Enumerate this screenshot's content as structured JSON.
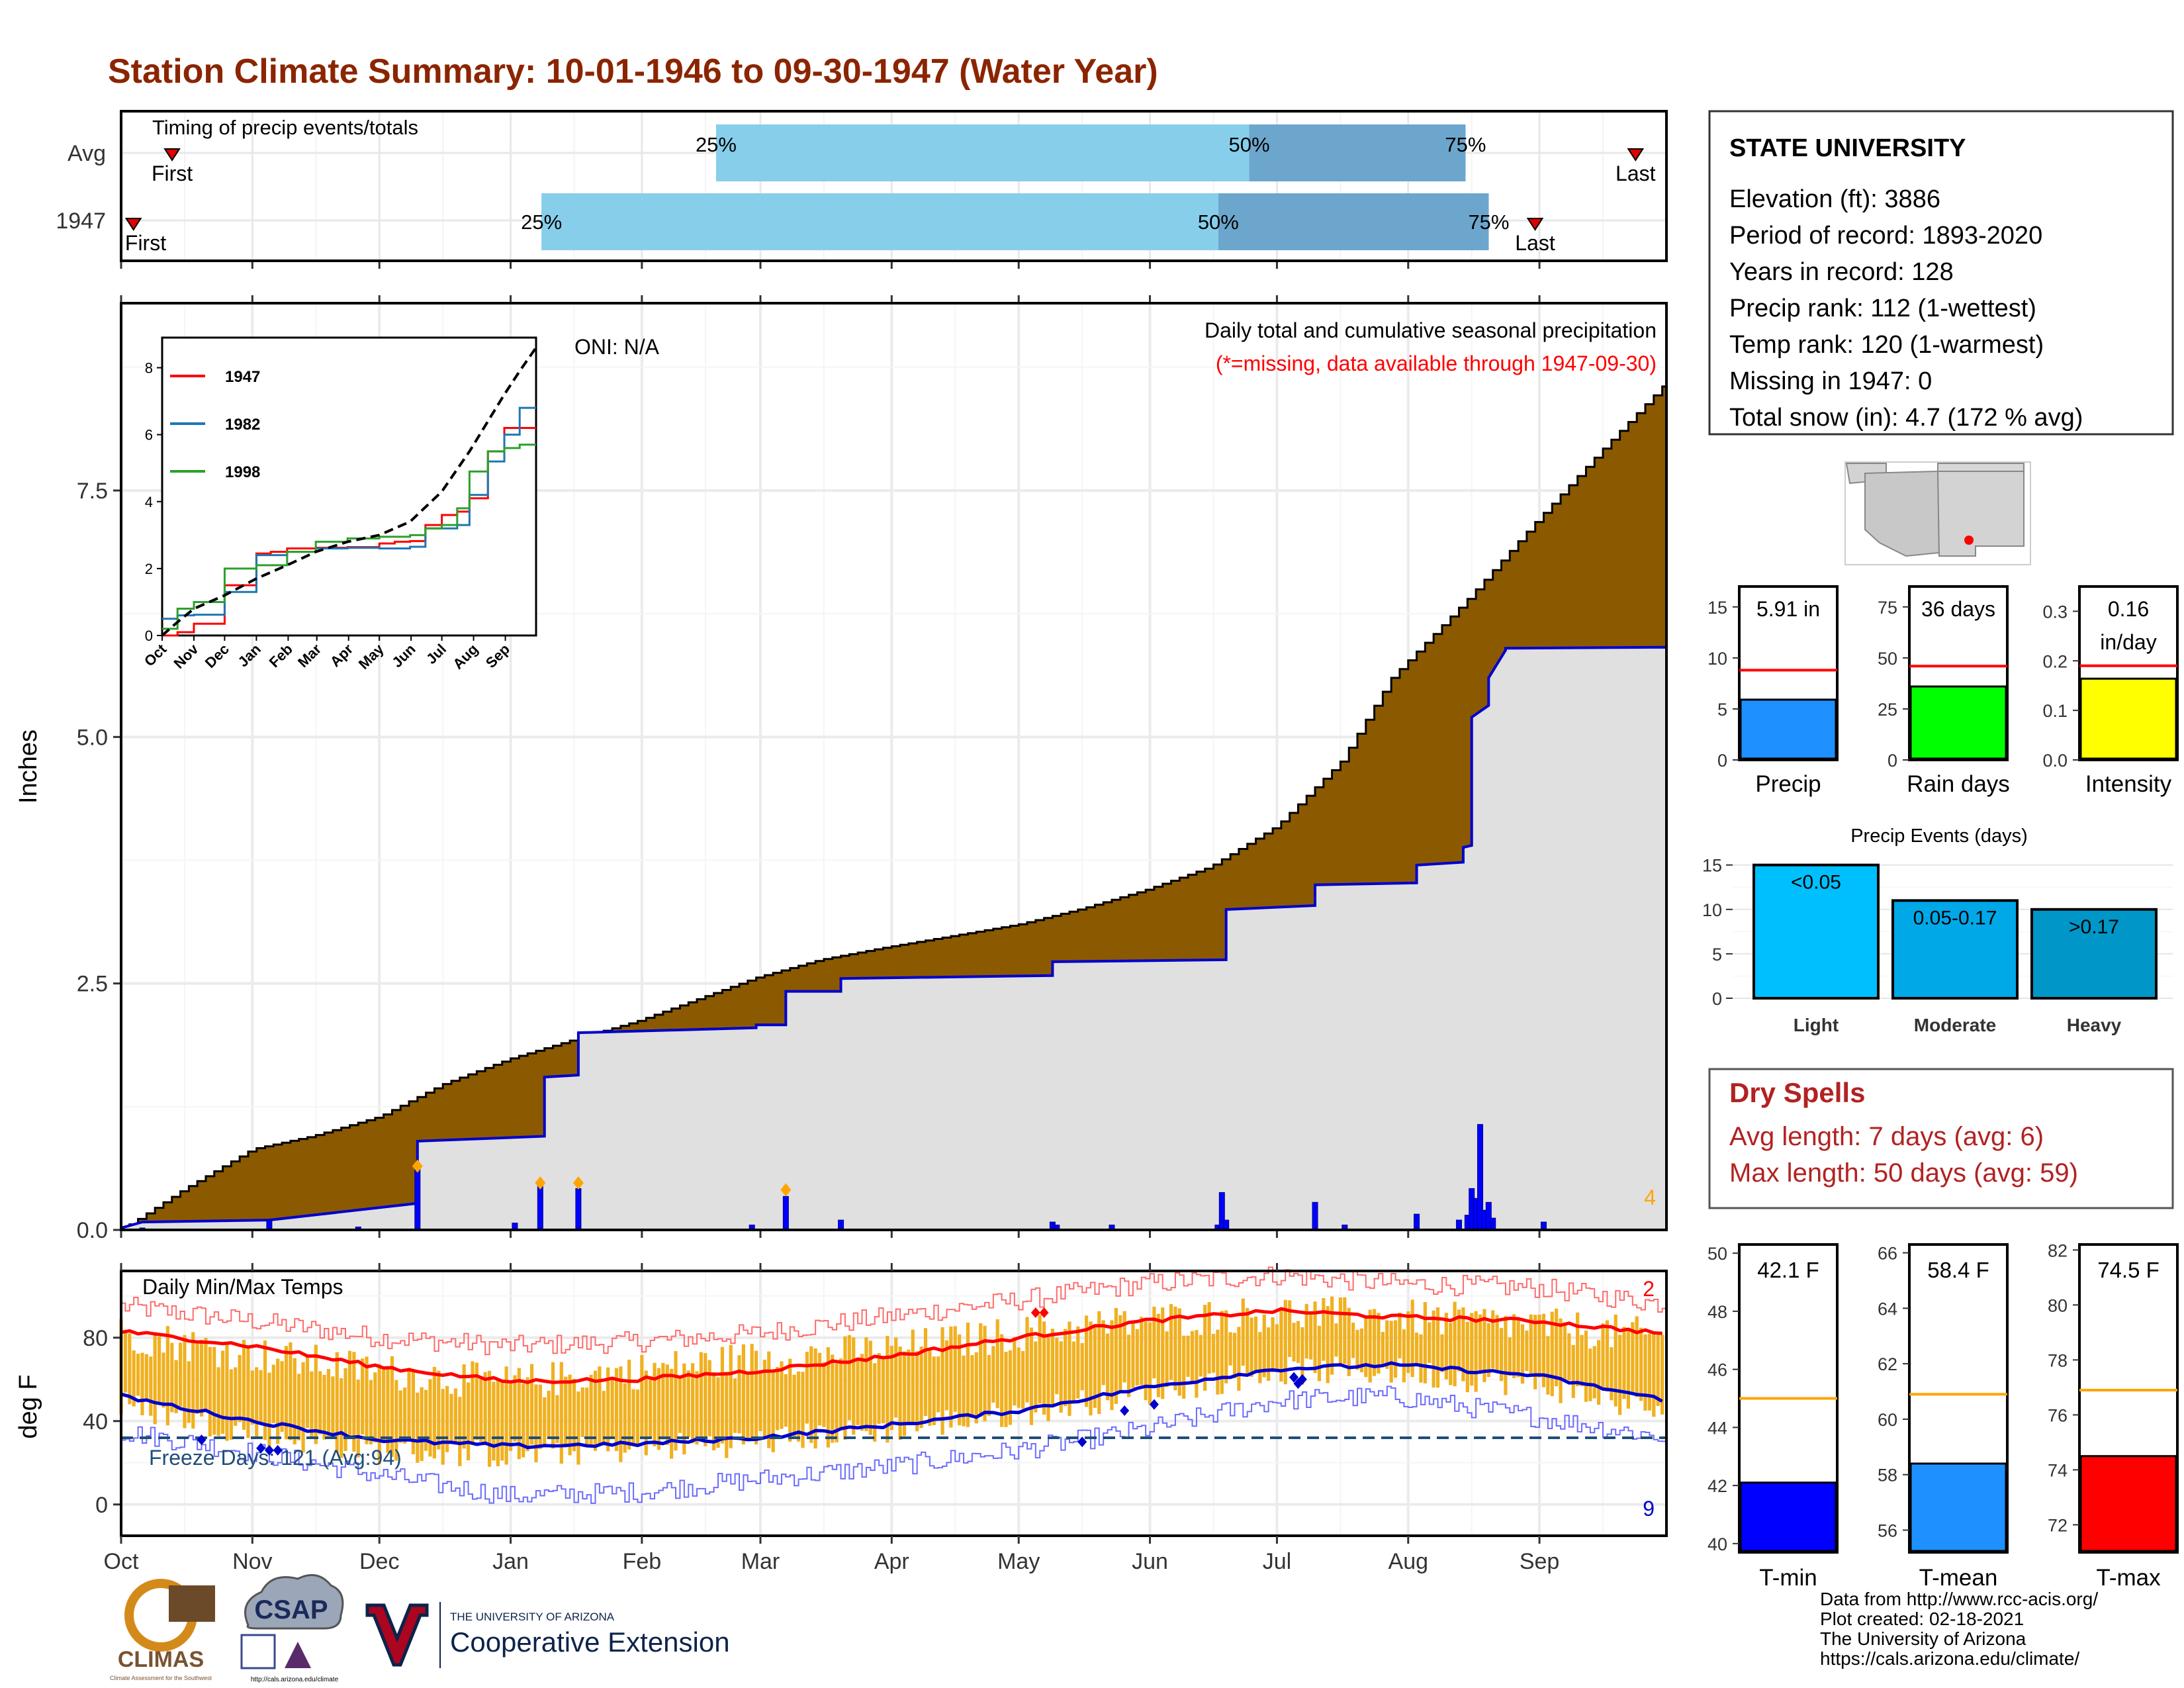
{
  "title": "Station Climate Summary: 10-01-1946 to 09-30-1947 (Water Year)",
  "colors": {
    "title": "#8B2500",
    "light_blue": "#87CEEB",
    "mid_blue": "#6CA6CD",
    "cumulative_fill": "#8B5A00",
    "normal_fill": "#E0E0E0",
    "precip_bar": "#0000FF",
    "temp_bar": "#F0B020",
    "tmax_line": "#FF0000",
    "tmin_line": "#0000CD",
    "freeze_line": "#1F4E79"
  },
  "timing": {
    "label": "Timing of precip events/totals",
    "rows": [
      {
        "name": "Avg",
        "first": 0.033,
        "last": 0.98,
        "q25": 0.385,
        "q50": 0.73,
        "q75": 0.87,
        "labels": {
          "first": "First",
          "last": "Last",
          "q25": "25%",
          "q50": "50%",
          "q75": "75%"
        }
      },
      {
        "name": "1947",
        "first": 0.008,
        "last": 0.915,
        "q25": 0.272,
        "q50": 0.71,
        "q75": 0.885,
        "labels": {
          "first": "First",
          "last": "Last",
          "q25": "25%",
          "q50": "50%",
          "q75": "75%"
        }
      }
    ]
  },
  "main_panel": {
    "title": "Daily total and cumulative seasonal precipitation",
    "subtitle": "(*=missing, data available through 1947-09-30)",
    "oni": "ONI: N/A",
    "corner_count": "4",
    "ylabel": "Inches",
    "yticks": [
      "0.0",
      "2.5",
      "5.0",
      "7.5"
    ]
  },
  "months": [
    "Oct",
    "Nov",
    "Dec",
    "Jan",
    "Feb",
    "Mar",
    "Apr",
    "May",
    "Jun",
    "Jul",
    "Aug",
    "Sep"
  ],
  "inset": {
    "yticks": [
      "0",
      "2",
      "4",
      "6",
      "8"
    ],
    "legend": [
      {
        "name": "1947",
        "color": "#FF0000"
      },
      {
        "name": "1982",
        "color": "#1F77B4"
      },
      {
        "name": "1998",
        "color": "#2CA02C"
      }
    ]
  },
  "temp_panel": {
    "title": "Daily Min/Max Temps",
    "ylabel": "deg F",
    "yticks": [
      "0",
      "40",
      "80"
    ],
    "freeze_label": "Freeze Days: 121 (Avg:94)",
    "max_count": "2",
    "min_count": "9"
  },
  "station": {
    "name": "STATE UNIVERSITY",
    "lines": [
      "Elevation (ft): 3886",
      "Period of record: 1893-2020",
      "Years in record: 128",
      "Precip rank: 112 (1-wettest)",
      "Temp rank: 120 (1-warmest)",
      "Missing in 1947: 0",
      "Total snow (in): 4.7 (172 % avg)"
    ]
  },
  "mini_bars": [
    {
      "label": "Precip",
      "value_text": "5.91 in",
      "value": 5.91,
      "avg": 8.8,
      "max": 17,
      "ticks": [
        "0",
        "5",
        "10",
        "15"
      ],
      "tick_vals": [
        0,
        5,
        10,
        15
      ],
      "color": "#1E90FF"
    },
    {
      "label": "Rain days",
      "value_text": "36 days",
      "value": 36,
      "avg": 46,
      "max": 85,
      "ticks": [
        "0",
        "25",
        "50",
        "75"
      ],
      "tick_vals": [
        0,
        25,
        50,
        75
      ],
      "color": "#00FF00"
    },
    {
      "label": "Intensity",
      "value_text": "0.16 in/day",
      "value_line1": "0.16",
      "value_line2": "in/day",
      "value": 0.164,
      "avg": 0.19,
      "max": 0.35,
      "ticks": [
        "0.0",
        "0.1",
        "0.2",
        "0.3"
      ],
      "tick_vals": [
        0.0,
        0.1,
        0.2,
        0.3
      ],
      "color": "#FFFF00"
    }
  ],
  "precip_events": {
    "title": "Precip Events (days)",
    "yticks": [
      "0",
      "5",
      "10",
      "15"
    ],
    "bars": [
      {
        "category": "Light",
        "label": "<0.05",
        "value": 15,
        "color": "#00BFFF"
      },
      {
        "category": "Moderate",
        "label": "0.05-0.17",
        "value": 11,
        "color": "#00A8E8"
      },
      {
        "category": "Heavy",
        "label": ">0.17",
        "value": 10,
        "color": "#0096C8"
      }
    ]
  },
  "dry_spells": {
    "title": "Dry Spells",
    "lines": [
      "Avg length: 7 days (avg: 6)",
      "Max length: 50 days (avg: 59)"
    ],
    "color": "#B22222"
  },
  "temp_bars": [
    {
      "label": "T-min",
      "value_text": "42.1 F",
      "value": 42.1,
      "avg": 45.0,
      "min": 39.7,
      "max": 50.3,
      "ticks": [
        "40",
        "42",
        "44",
        "46",
        "48",
        "50"
      ],
      "tick_vals": [
        40,
        42,
        44,
        46,
        48,
        50
      ],
      "color": "#0000FF"
    },
    {
      "label": "T-mean",
      "value_text": "58.4 F",
      "value": 58.4,
      "avg": 60.9,
      "min": 55.2,
      "max": 66.3,
      "ticks": [
        "56",
        "58",
        "60",
        "62",
        "64",
        "66"
      ],
      "tick_vals": [
        56,
        58,
        60,
        62,
        64,
        66
      ],
      "color": "#1E90FF"
    },
    {
      "label": "T-max",
      "value_text": "74.5 F",
      "value": 74.5,
      "avg": 76.9,
      "min": 71.0,
      "max": 82.2,
      "ticks": [
        "72",
        "74",
        "76",
        "78",
        "80",
        "82"
      ],
      "tick_vals": [
        72,
        74,
        76,
        78,
        80,
        82
      ],
      "color": "#FF0000"
    }
  ],
  "footer": {
    "lines": [
      "Data from http://www.rcc-acis.org/",
      "Plot created: 02-18-2021",
      "The University of Arizona",
      "https://cals.arizona.edu/climate/"
    ],
    "climas": "CLIMAS",
    "climas_sub": "Climate Assessment for the Southwest",
    "csap": "CSAP",
    "csap_url": "http://cals.arizona.edu/climate",
    "ua_small": "THE UNIVERSITY OF ARIZONA",
    "ua_big": "Cooperative Extension"
  },
  "chart_data": [
    {
      "type": "area",
      "title": "Daily total and cumulative seasonal precipitation",
      "ylabel": "Inches",
      "ylim": [
        0,
        9.4
      ],
      "grid": true,
      "x_unit": "day of water year",
      "series": [
        {
          "name": "cumulative average",
          "x": [
            0,
            15,
            31,
            45,
            61,
            76,
            92,
            106,
            122,
            136,
            150,
            165,
            181,
            196,
            212,
            227,
            242,
            257,
            273,
            288,
            300,
            318,
            334,
            349,
            365
          ],
          "values": [
            0,
            0.42,
            0.82,
            0.95,
            1.15,
            1.48,
            1.74,
            1.92,
            2.12,
            2.34,
            2.56,
            2.74,
            2.87,
            2.98,
            3.1,
            3.26,
            3.45,
            3.68,
            4.1,
            4.75,
            5.6,
            6.4,
            7.18,
            7.88,
            8.6
          ]
        },
        {
          "name": "1947 cumulative",
          "x": [
            0,
            5,
            35,
            70,
            70,
            100,
            100,
            108,
            108,
            150,
            150,
            157,
            157,
            170,
            170,
            220,
            220,
            261,
            261,
            282,
            282,
            306,
            306,
            317,
            317,
            319,
            319,
            323,
            323,
            327,
            327,
            365
          ],
          "values": [
            0.02,
            0.08,
            0.1,
            0.27,
            0.9,
            0.95,
            1.55,
            1.57,
            2.0,
            2.05,
            2.08,
            2.08,
            2.42,
            2.42,
            2.55,
            2.58,
            2.72,
            2.74,
            3.25,
            3.29,
            3.5,
            3.52,
            3.7,
            3.73,
            3.88,
            3.9,
            5.2,
            5.32,
            5.6,
            5.88,
            5.9,
            5.91
          ]
        },
        {
          "name": "1947 daily",
          "x": [
            5,
            35,
            56,
            70,
            93,
            99,
            108,
            149,
            157,
            170,
            220,
            221,
            234,
            259,
            260,
            261,
            282,
            289,
            306,
            316,
            318,
            319,
            320,
            321,
            322,
            323,
            324,
            336
          ],
          "values": [
            0.02,
            0.1,
            0.03,
            0.62,
            0.07,
            0.45,
            0.42,
            0.05,
            0.34,
            0.1,
            0.08,
            0.05,
            0.05,
            0.05,
            0.38,
            0.1,
            0.28,
            0.05,
            0.16,
            0.1,
            0.15,
            0.42,
            0.32,
            1.07,
            0.2,
            0.28,
            0.12,
            0.08
          ]
        }
      ]
    },
    {
      "type": "line",
      "title": "",
      "ylim": [
        0,
        8.9
      ],
      "categories": [
        "Oct",
        "Nov",
        "Dec",
        "Jan",
        "Feb",
        "Mar",
        "Apr",
        "May",
        "Jun",
        "Jul",
        "Aug",
        "Sep"
      ],
      "series": [
        {
          "name": "1947",
          "x": [
            0,
            15,
            31,
            61,
            92,
            106,
            122,
            150,
            181,
            212,
            227,
            242,
            257,
            273,
            288,
            300,
            318,
            334,
            349,
            365
          ],
          "values": [
            0,
            0.1,
            0.35,
            1.5,
            2.45,
            2.5,
            2.6,
            2.62,
            2.64,
            2.75,
            2.8,
            2.82,
            3.3,
            3.6,
            3.7,
            4.1,
            5.5,
            6.2,
            6.2,
            6.2
          ]
        },
        {
          "name": "1982",
          "x": [
            0,
            15,
            31,
            61,
            92,
            122,
            150,
            181,
            212,
            242,
            257,
            273,
            288,
            300,
            318,
            334,
            349,
            365
          ],
          "values": [
            0.5,
            0.6,
            0.62,
            1.3,
            2.4,
            2.5,
            2.6,
            2.62,
            2.6,
            2.65,
            3.2,
            3.2,
            3.3,
            4.2,
            5.2,
            6.0,
            6.8,
            6.8
          ]
        },
        {
          "name": "1998",
          "x": [
            0,
            15,
            31,
            61,
            92,
            122,
            150,
            181,
            212,
            242,
            257,
            273,
            288,
            300,
            318,
            334,
            349,
            365
          ],
          "values": [
            0.2,
            0.8,
            1.0,
            2.0,
            2.1,
            2.5,
            2.8,
            2.9,
            2.95,
            3.0,
            3.2,
            3.3,
            3.8,
            4.9,
            5.5,
            5.6,
            5.7,
            5.7
          ]
        },
        {
          "name": "average",
          "x": [
            0,
            15,
            31,
            61,
            92,
            122,
            150,
            181,
            212,
            242,
            273,
            300,
            318,
            334,
            349,
            365
          ],
          "values": [
            0,
            0.4,
            0.8,
            1.2,
            1.7,
            2.1,
            2.5,
            2.8,
            3.0,
            3.4,
            4.3,
            5.5,
            6.4,
            7.2,
            7.9,
            8.6
          ]
        }
      ]
    },
    {
      "type": "bar",
      "title": "Daily Min/Max Temps",
      "ylabel": "deg F",
      "ylim": [
        -15,
        112
      ],
      "grid": true,
      "freeze_threshold": 32,
      "series": [
        {
          "name": "tmax normal",
          "x": [
            0,
            31,
            61,
            92,
            122,
            150,
            181,
            212,
            242,
            273,
            300,
            334,
            365
          ],
          "values": [
            83,
            76,
            66,
            59,
            60,
            64,
            71,
            80,
            88,
            93,
            90,
            88,
            82
          ]
        },
        {
          "name": "tmin normal",
          "x": [
            0,
            31,
            61,
            92,
            122,
            150,
            181,
            212,
            242,
            273,
            300,
            334,
            365
          ],
          "values": [
            52,
            40,
            31,
            28,
            29,
            32,
            38,
            45,
            56,
            65,
            67,
            62,
            50
          ]
        },
        {
          "name": "tmax record",
          "x": [
            0,
            31,
            61,
            92,
            122,
            150,
            181,
            212,
            242,
            273,
            300,
            334,
            365
          ],
          "values": [
            95,
            88,
            80,
            76,
            78,
            82,
            90,
            98,
            106,
            110,
            106,
            104,
            96
          ]
        },
        {
          "name": "tmin record",
          "x": [
            0,
            31,
            61,
            92,
            122,
            150,
            181,
            212,
            242,
            273,
            300,
            334,
            365
          ],
          "values": [
            35,
            25,
            14,
            4,
            6,
            12,
            18,
            26,
            36,
            50,
            52,
            42,
            32
          ]
        },
        {
          "name": "daily max",
          "x": [
            0,
            31,
            61,
            92,
            122,
            150,
            181,
            212,
            242,
            273,
            300,
            334,
            365
          ],
          "values": [
            82,
            72,
            64,
            58,
            64,
            70,
            74,
            82,
            88,
            92,
            90,
            86,
            80
          ]
        },
        {
          "name": "daily min",
          "x": [
            0,
            31,
            61,
            92,
            122,
            150,
            181,
            212,
            242,
            273,
            300,
            334,
            365
          ],
          "values": [
            48,
            35,
            26,
            24,
            27,
            30,
            36,
            44,
            54,
            64,
            64,
            58,
            44
          ]
        }
      ]
    }
  ]
}
